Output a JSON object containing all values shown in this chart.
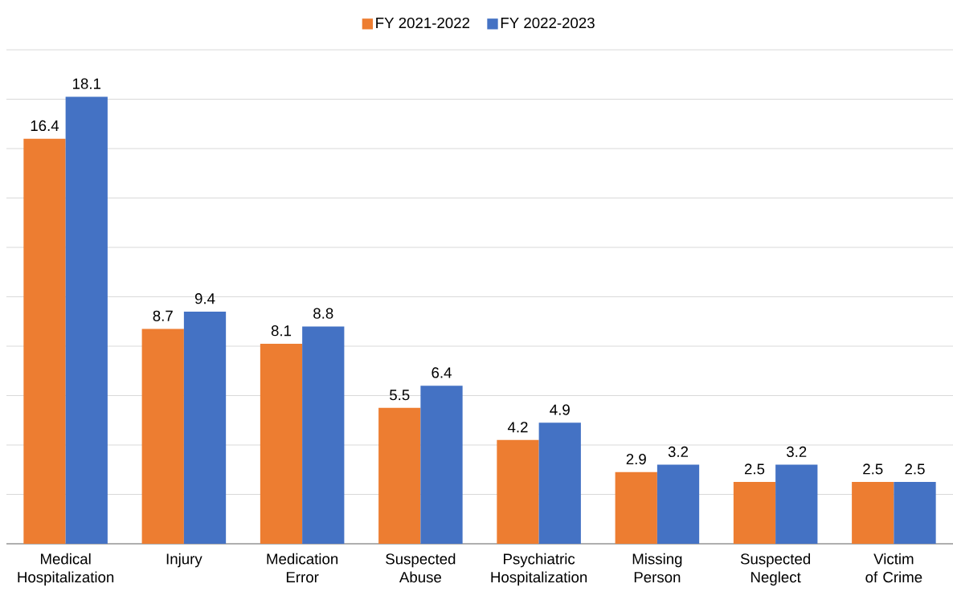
{
  "chart_data": {
    "type": "bar",
    "categories": [
      "Medical Hospitalization",
      "Injury",
      "Medication Error",
      "Suspected Abuse",
      "Psychiatric Hospitalization",
      "Missing Person",
      "Suspected Neglect",
      "Victim of Crime"
    ],
    "series": [
      {
        "name": "FY 2021-2022",
        "color": "#ed7d31",
        "values": [
          16.4,
          8.7,
          8.1,
          5.5,
          4.2,
          2.9,
          2.5,
          2.5
        ]
      },
      {
        "name": "FY 2022-2023",
        "color": "#4472c4",
        "values": [
          18.1,
          9.4,
          8.8,
          6.4,
          4.9,
          3.2,
          3.2,
          2.5
        ]
      }
    ],
    "ylim": [
      0,
      20
    ],
    "yticks": [
      {
        "value": 0,
        "label": null
      },
      {
        "value": 2,
        "label": null
      },
      {
        "value": 4,
        "label": null
      },
      {
        "value": 6,
        "label": null
      },
      {
        "value": 8,
        "label": null
      },
      {
        "value": 10,
        "label": null
      },
      {
        "value": 12,
        "label": null
      },
      {
        "value": 14,
        "label": null
      },
      {
        "value": 16,
        "label": null
      },
      {
        "value": 18,
        "label": null
      },
      {
        "value": 20,
        "label": null
      }
    ],
    "tick_labels": "x",
    "grid": "y",
    "legend": "top",
    "data_labels": true
  }
}
